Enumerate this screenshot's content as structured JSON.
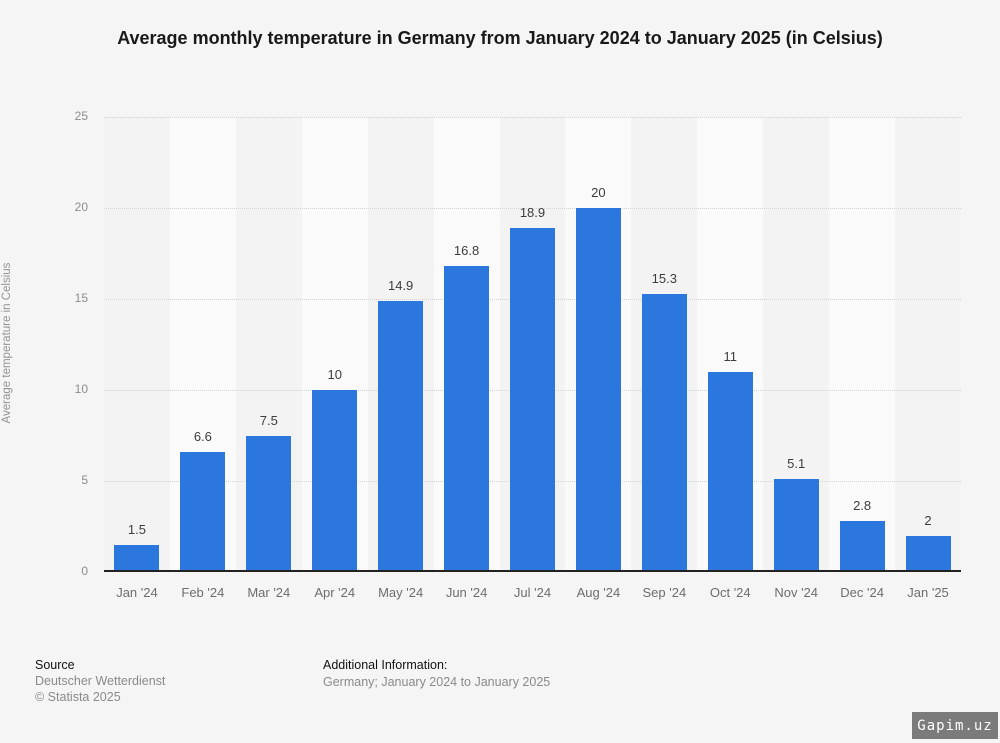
{
  "chart_data": {
    "type": "bar",
    "title": "Average monthly temperature in Germany from January 2024 to January 2025 (in Celsius)",
    "categories": [
      "Jan '24",
      "Feb '24",
      "Mar '24",
      "Apr '24",
      "May '24",
      "Jun '24",
      "Jul '24",
      "Aug '24",
      "Sep '24",
      "Oct '24",
      "Nov '24",
      "Dec '24",
      "Jan '25"
    ],
    "values": [
      1.5,
      6.6,
      7.5,
      10,
      14.9,
      16.8,
      18.9,
      20,
      15.3,
      11,
      5.1,
      2.8,
      2
    ],
    "value_labels": [
      "1.5",
      "6.6",
      "7.5",
      "10",
      "14.9",
      "16.8",
      "18.9",
      "20",
      "15.3",
      "11",
      "5.1",
      "2.8",
      "2"
    ],
    "xlabel": "",
    "ylabel": "Average temperature in Celsius",
    "ylim": [
      0,
      25
    ],
    "yticks": [
      0,
      5,
      10,
      15,
      20,
      25
    ],
    "grid": "horizontal-dotted",
    "legend": "none",
    "bar_color": "#2c77dd",
    "stripe_colors": [
      "#f3f3f3",
      "#fafafa"
    ]
  },
  "footer": {
    "source_label": "Source",
    "source_name": "Deutscher Wetterdienst",
    "copyright": "© Statista 2025",
    "additional_info_label": "Additional Information:",
    "additional_info": "Germany; January 2024 to January 2025"
  },
  "watermark": {
    "text": "Gapim.uz"
  }
}
